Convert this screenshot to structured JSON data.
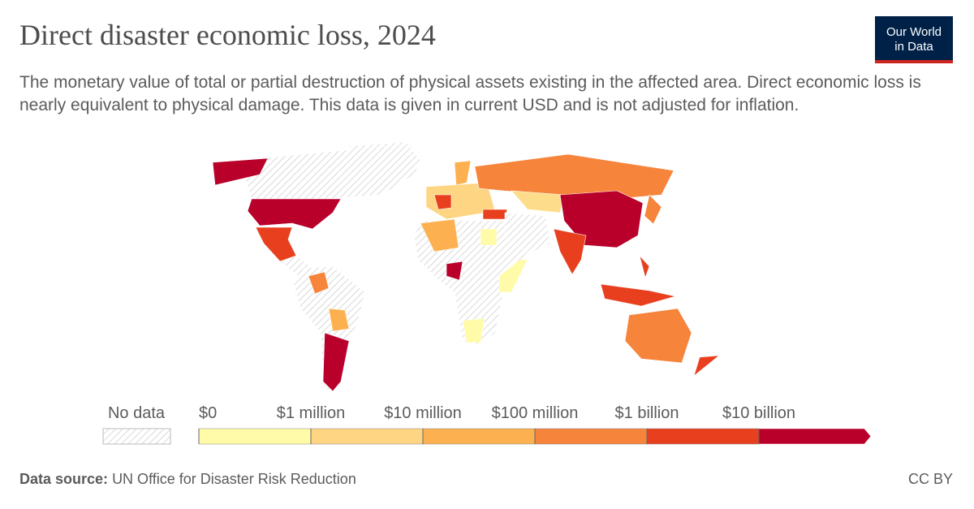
{
  "header": {
    "title": "Direct disaster economic loss, 2024",
    "subtitle": "The monetary value of total or partial destruction of physical assets existing in the affected area. Direct economic loss is nearly equivalent to physical damage. This data is given in current USD and is not adjusted for inflation.",
    "logo": [
      "Our World",
      "in Data"
    ]
  },
  "legend": {
    "no_data": "No data",
    "ticks": [
      {
        "value": 0,
        "label": "$0"
      },
      {
        "value": 1000000,
        "label": "$1 million"
      },
      {
        "value": 10000000,
        "label": "$10 million"
      },
      {
        "value": 100000000,
        "label": "$100 million"
      },
      {
        "value": 1000000000,
        "label": "$1 billion"
      },
      {
        "value": 10000000000,
        "label": "$10 billion"
      }
    ],
    "colors": [
      "#fffba8",
      "#fdd583",
      "#fdb04f",
      "#f6843b",
      "#e8401f",
      "#b8002b"
    ]
  },
  "footer": {
    "source_label": "Data source:",
    "source": "UN Office for Disaster Risk Reduction",
    "license": "CC BY"
  }
}
